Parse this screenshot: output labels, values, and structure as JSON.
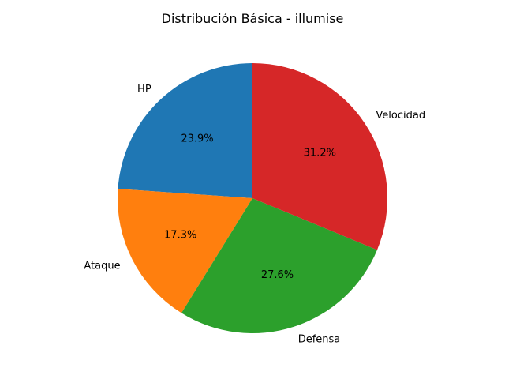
{
  "chart_data": {
    "type": "pie",
    "title": "Distribución Básica - illumise",
    "categories": [
      "HP",
      "Ataque",
      "Defensa",
      "Velocidad"
    ],
    "values": [
      65,
      47,
      75,
      85
    ],
    "percent_labels": [
      "23.9%",
      "17.3%",
      "27.6%",
      "31.2%"
    ],
    "colors": [
      "#1f77b4",
      "#ff7f0e",
      "#2ca02c",
      "#d62728"
    ],
    "start_angle_deg": 90,
    "direction": "counterclockwise",
    "legend": "none"
  }
}
